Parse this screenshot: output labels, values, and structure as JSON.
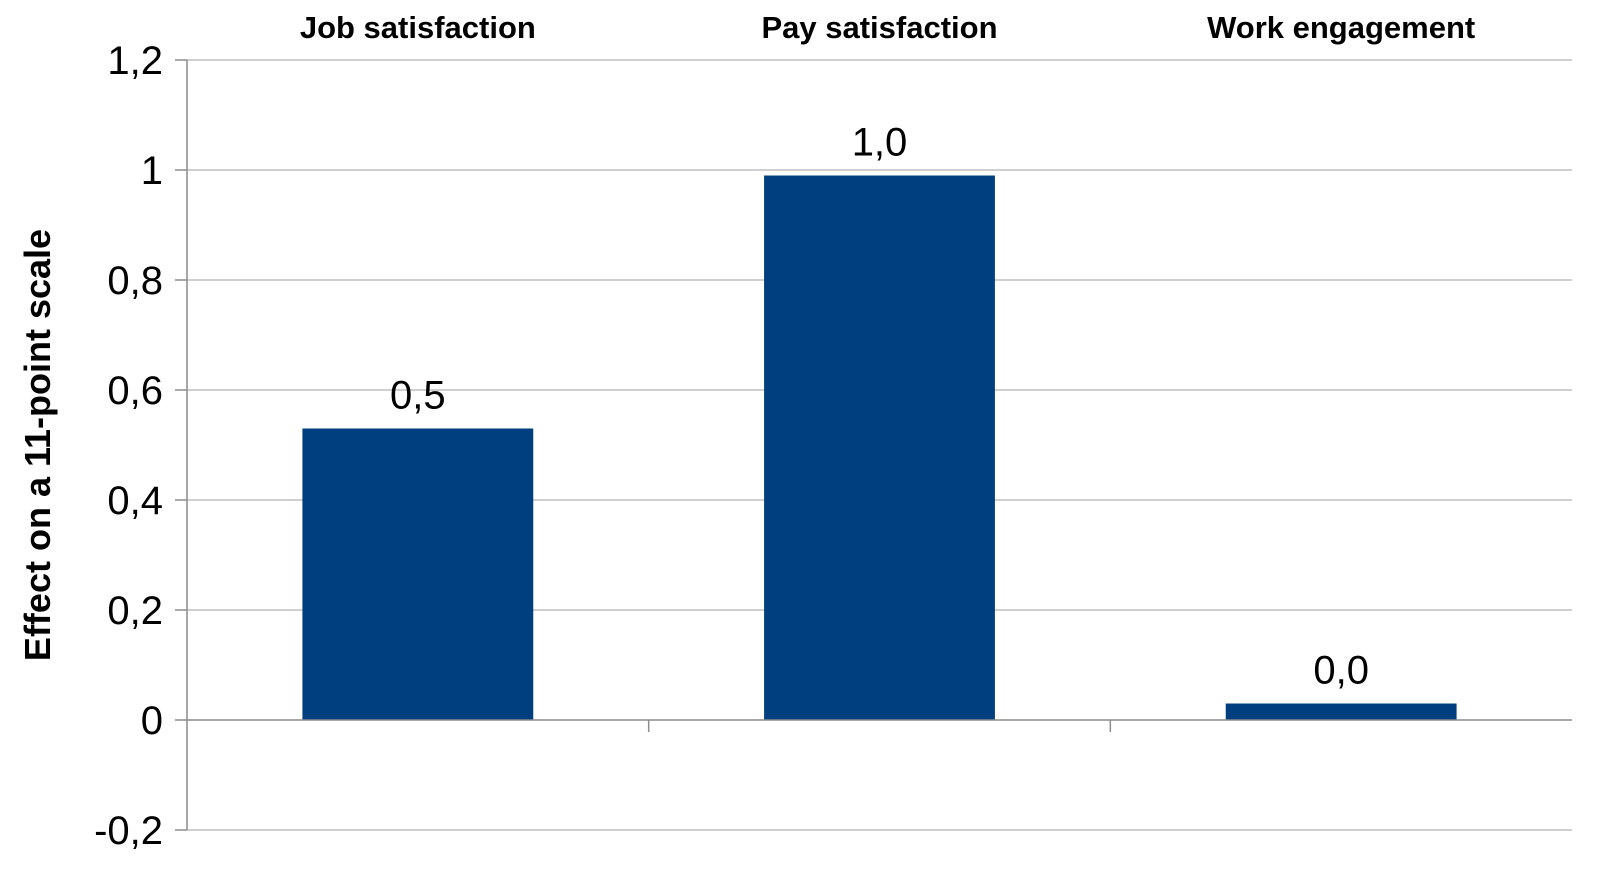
{
  "chart_data": {
    "type": "bar",
    "categories": [
      "Job satisfaction",
      "Pay satisfaction",
      "Work engagement"
    ],
    "values": [
      0.53,
      0.99,
      0.03
    ],
    "data_labels": [
      "0,5",
      "1,0",
      "0,0"
    ],
    "ylabel": "Effect on a 11-point scale",
    "ylim": [
      -0.2,
      1.2
    ],
    "yticks": [
      -0.2,
      0,
      0.2,
      0.4,
      0.6,
      0.8,
      1,
      1.2
    ],
    "ytick_labels": [
      "-0,2",
      "0",
      "0,2",
      "0,4",
      "0,6",
      "0,8",
      "1",
      "1,2"
    ],
    "category_axis_position": "top",
    "grid": true,
    "bar_color": "#003f7f"
  }
}
